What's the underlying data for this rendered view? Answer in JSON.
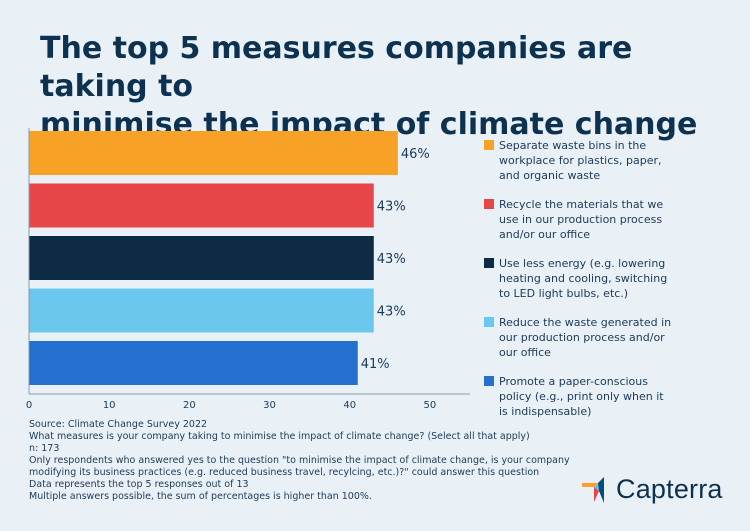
{
  "title_lines": [
    "The top 5 measures companies are taking to",
    "minimise the impact of climate change"
  ],
  "chart_data": {
    "type": "bar",
    "orientation": "horizontal",
    "categories": [
      "Separate waste bins in the workplace for plastics, paper, and organic waste",
      "Recycle the materials that we use in our production process and/or our office",
      "Use less energy (e.g. lowering heating and cooling, switching to LED light bulbs, etc.)",
      "Reduce the waste generated in our production process and/or our office",
      "Promote a paper-conscious policy (e.g., print only when it is indispensable)"
    ],
    "values": [
      46,
      43,
      43,
      43,
      41
    ],
    "value_labels": [
      "46%",
      "43%",
      "43%",
      "43%",
      "41%"
    ],
    "colors": [
      "#f7a127",
      "#e8474a",
      "#0d2b45",
      "#6cc7ef",
      "#2370cf"
    ],
    "xlim": [
      0,
      55
    ],
    "xticks": [
      "0",
      "10",
      "20",
      "30",
      "40",
      "50"
    ],
    "legend_position": "right",
    "grid": false
  },
  "legend": [
    {
      "lines": [
        "Separate waste bins in the",
        "workplace for plastics, paper,",
        "and organic waste"
      ],
      "color": "#f7a127"
    },
    {
      "lines": [
        "Recycle the materials that we",
        "use in our production process",
        "and/or our office"
      ],
      "color": "#e8474a"
    },
    {
      "lines": [
        "Use less energy (e.g. lowering",
        "heating and cooling, switching",
        "to LED light bulbs, etc.)"
      ],
      "color": "#0d2b45"
    },
    {
      "lines": [
        "Reduce the waste generated in",
        "our production process and/or",
        "our office"
      ],
      "color": "#6cc7ef"
    },
    {
      "lines": [
        "Promote a paper-conscious",
        "policy (e.g., print only when it",
        "is indispensable)"
      ],
      "color": "#2370cf"
    }
  ],
  "footnotes": [
    "Source: Climate Change Survey 2022",
    "What measures is your company taking to minimise the impact of climate change? (Select all that apply)",
    "n: 173",
    "Only respondents who answered yes to the question \"to minimise the impact of climate change, is your company",
    "modifying its business practices (e.g. reduced business travel, recylcing, etc.)?\" could answer this question",
    "Data represents the top 5 responses out of 13",
    "Multiple answers possible, the sum of percentages is higher than 100%."
  ],
  "brand": {
    "name": "Capterra",
    "colors": [
      "#ff9d28",
      "#68c5ed",
      "#044d80",
      "#e54747"
    ]
  }
}
